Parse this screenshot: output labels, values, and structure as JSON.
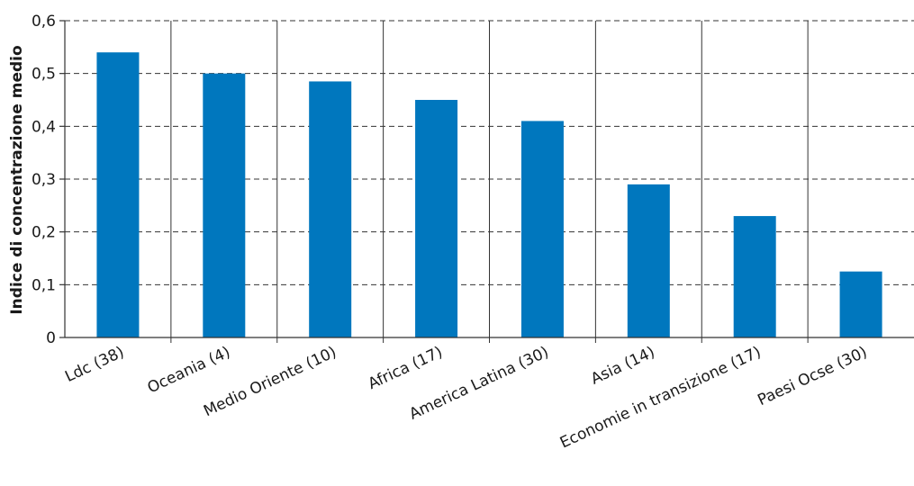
{
  "chart_data": {
    "type": "bar",
    "ylabel": "Indice di concentrazione medio",
    "categories": [
      "Ldc (38)",
      "Oceania (4)",
      "Medio Oriente (10)",
      "Africa (17)",
      "America Latina (30)",
      "Asia (14)",
      "Economie in transizione (17)",
      "Paesi Ocse (30)"
    ],
    "values": [
      0.54,
      0.5,
      0.485,
      0.45,
      0.41,
      0.29,
      0.23,
      0.125
    ],
    "ylim": [
      0,
      0.6
    ],
    "yticks": [
      "0",
      "0,1",
      "0,2",
      "0,3",
      "0,4",
      "0,5",
      "0,6"
    ],
    "grid": "dashed-horizontal",
    "bar_color": "#0077be"
  }
}
